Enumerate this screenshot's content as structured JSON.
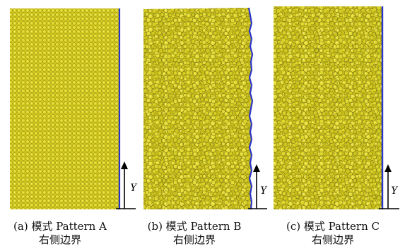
{
  "panels": [
    {
      "id": "a",
      "pattern_name": "Pattern A",
      "caption_line1": "(a) 模式 Pattern A",
      "caption_line2": "右侧边界",
      "axis_label": "Y",
      "packing": "regular",
      "boundary_shape": "straight"
    },
    {
      "id": "b",
      "pattern_name": "Pattern B",
      "caption_line1": "(b) 模式 Pattern B",
      "caption_line2": "右侧边界",
      "axis_label": "Y",
      "packing": "random",
      "boundary_shape": "rough"
    },
    {
      "id": "c",
      "pattern_name": "Pattern C",
      "caption_line1": "(c) 模式 Pattern C",
      "caption_line2": "右侧边界",
      "axis_label": "Y",
      "packing": "random",
      "boundary_shape": "straight"
    }
  ],
  "colors": {
    "particle_fill": "#d8cf1e",
    "particle_light": "#ede84a",
    "particle_dark": "#9a9010",
    "particle_outline": "#6f6a1a",
    "boundary": "#2b35c8",
    "axis": "#000000"
  }
}
